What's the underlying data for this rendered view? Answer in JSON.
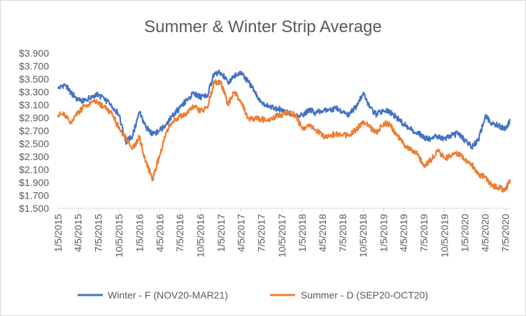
{
  "chart_data": {
    "type": "line",
    "title": "Summer & Winter Strip Average",
    "xlabel": "",
    "ylabel": "",
    "ylim": [
      1.5,
      3.9
    ],
    "y_ticks": [
      "$1.500",
      "$1.700",
      "$1.900",
      "$2.100",
      "$2.300",
      "$2.500",
      "$2.700",
      "$2.900",
      "$3.100",
      "$3.300",
      "$3.500",
      "$3.700",
      "$3.900"
    ],
    "x_ticks": [
      "1/5/2015",
      "4/5/2015",
      "7/5/2015",
      "10/5/2015",
      "1/5/2016",
      "4/5/2016",
      "7/5/2016",
      "10/5/2016",
      "1/5/2017",
      "4/5/2017",
      "7/5/2017",
      "10/5/2017",
      "1/5/2018",
      "4/5/2018",
      "7/5/2018",
      "10/5/2018",
      "1/5/2019",
      "4/5/2019",
      "7/5/2019",
      "10/5/2019",
      "1/5/2020",
      "4/5/2020",
      "7/5/2020"
    ],
    "grid": false,
    "legend_position": "bottom",
    "x": [
      "1/5/2015",
      "2/5/2015",
      "3/5/2015",
      "4/5/2015",
      "5/5/2015",
      "6/5/2015",
      "7/5/2015",
      "8/5/2015",
      "9/5/2015",
      "10/5/2015",
      "11/5/2015",
      "12/5/2015",
      "1/5/2016",
      "2/5/2016",
      "3/5/2016",
      "4/5/2016",
      "5/5/2016",
      "6/5/2016",
      "7/5/2016",
      "8/5/2016",
      "9/5/2016",
      "10/5/2016",
      "11/5/2016",
      "12/5/2016",
      "1/5/2017",
      "2/5/2017",
      "3/5/2017",
      "4/5/2017",
      "5/5/2017",
      "6/5/2017",
      "7/5/2017",
      "8/5/2017",
      "9/5/2017",
      "10/5/2017",
      "11/5/2017",
      "12/5/2017",
      "1/5/2018",
      "2/5/2018",
      "3/5/2018",
      "4/5/2018",
      "5/5/2018",
      "6/5/2018",
      "7/5/2018",
      "8/5/2018",
      "9/5/2018",
      "10/5/2018",
      "11/5/2018",
      "12/5/2018",
      "1/5/2019",
      "2/5/2019",
      "3/5/2019",
      "4/5/2019",
      "5/5/2019",
      "6/5/2019",
      "7/5/2019",
      "8/5/2019",
      "9/5/2019",
      "10/5/2019",
      "11/5/2019",
      "12/5/2019",
      "1/5/2020",
      "2/5/2020",
      "3/5/2020",
      "4/5/2020",
      "5/5/2020",
      "6/5/2020",
      "7/5/2020",
      "7/25/2020"
    ],
    "series": [
      {
        "name": "Winter - F (NOV20-MAR21)",
        "color": "#4472c4",
        "values": [
          3.35,
          3.42,
          3.28,
          3.18,
          3.16,
          3.24,
          3.26,
          3.17,
          3.08,
          2.95,
          2.52,
          2.62,
          2.98,
          2.75,
          2.64,
          2.7,
          2.8,
          2.95,
          3.05,
          3.18,
          3.28,
          3.22,
          3.25,
          3.58,
          3.6,
          3.45,
          3.55,
          3.58,
          3.48,
          3.3,
          3.15,
          3.08,
          3.05,
          3.02,
          2.98,
          2.92,
          2.95,
          3.02,
          2.98,
          3.0,
          3.02,
          3.05,
          2.98,
          2.95,
          3.08,
          3.28,
          3.05,
          2.95,
          3.02,
          2.98,
          2.9,
          2.8,
          2.72,
          2.68,
          2.6,
          2.58,
          2.62,
          2.58,
          2.62,
          2.66,
          2.55,
          2.45,
          2.55,
          2.92,
          2.82,
          2.78,
          2.72,
          2.85
        ]
      },
      {
        "name": "Summer - D (SEP20-OCT20)",
        "color": "#ed7d31",
        "values": [
          2.95,
          2.95,
          2.82,
          2.98,
          3.08,
          3.15,
          3.14,
          3.05,
          2.95,
          2.75,
          2.58,
          2.42,
          2.6,
          2.2,
          1.95,
          2.32,
          2.68,
          2.85,
          2.92,
          2.98,
          3.08,
          3.0,
          3.05,
          3.45,
          3.45,
          3.1,
          3.3,
          3.15,
          2.9,
          2.88,
          2.88,
          2.85,
          2.92,
          2.95,
          2.98,
          2.95,
          2.72,
          2.8,
          2.72,
          2.62,
          2.62,
          2.65,
          2.62,
          2.65,
          2.72,
          2.85,
          2.75,
          2.68,
          2.82,
          2.78,
          2.62,
          2.5,
          2.4,
          2.35,
          2.15,
          2.25,
          2.4,
          2.28,
          2.3,
          2.35,
          2.25,
          2.18,
          2.02,
          2.0,
          1.85,
          1.82,
          1.78,
          1.95
        ]
      }
    ]
  }
}
